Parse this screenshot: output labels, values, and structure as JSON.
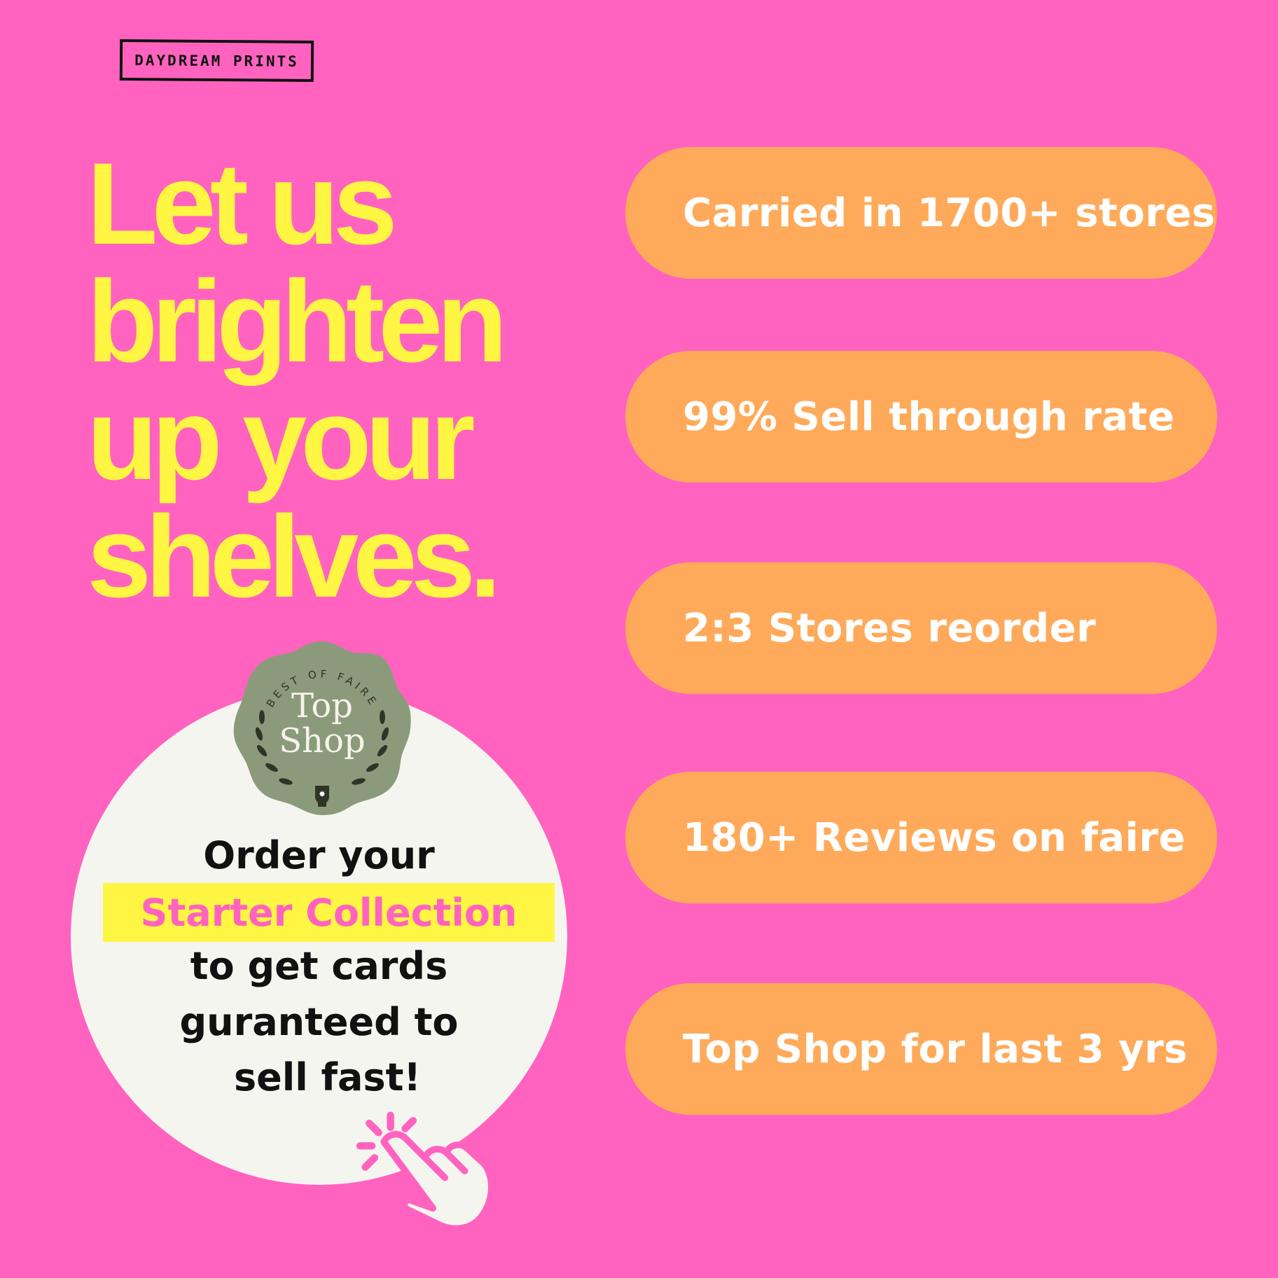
{
  "brand": {
    "logo_text": "DAYDREAM PRINTS"
  },
  "headline": {
    "lines": [
      "Let us",
      "brighten",
      "up your",
      "shelves."
    ]
  },
  "stats": [
    {
      "label": "Carried in 1700+ stores"
    },
    {
      "label": "99% Sell through rate"
    },
    {
      "label": "2:3 Stores reorder"
    },
    {
      "label": "180+ Reviews on faire"
    },
    {
      "label": "Top Shop for last 3 yrs"
    }
  ],
  "badge": {
    "arc_text": "BEST OF FAIRE",
    "title_line1": "Top",
    "title_line2": "Shop"
  },
  "cta": {
    "line1": "Order your",
    "highlight": "Starter Collection",
    "line2": "to get cards",
    "line3": "guranteed to",
    "line4": "sell fast!",
    "icon": "hand-click-icon"
  },
  "colors": {
    "background": "#ff63bf",
    "headline": "#fff543",
    "pill": "#ffaa5a",
    "circle": "#f5f5f0",
    "badge": "#8c9a7c"
  }
}
